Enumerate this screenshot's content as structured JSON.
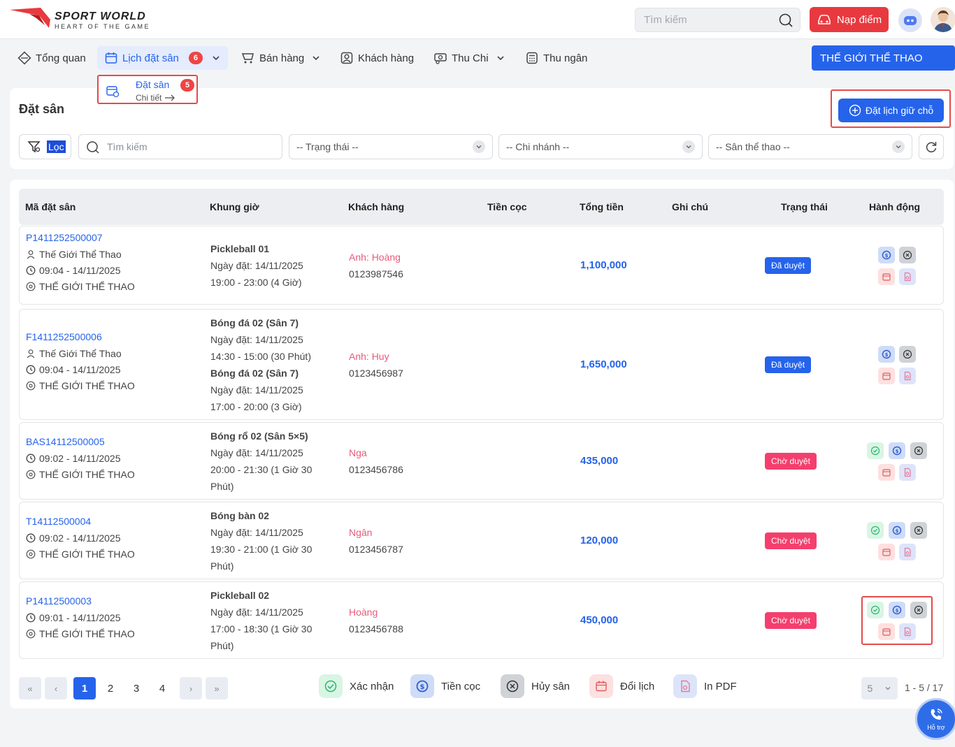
{
  "header": {
    "brand_name": "SPORT WORLD",
    "brand_tagline": "HEART OF THE GAME",
    "search_placeholder": "Tìm kiếm",
    "topup_label": "Nạp điểm",
    "brand_color": "#e8393f"
  },
  "nav": {
    "items": [
      {
        "label": "Tổng quan",
        "icon": "diamond-icon"
      },
      {
        "label": "Lịch đặt sân",
        "icon": "calendar-icon",
        "badge": "6",
        "active": true
      },
      {
        "label": "Bán hàng",
        "icon": "cart-icon"
      },
      {
        "label": "Khách hàng",
        "icon": "user-icon"
      },
      {
        "label": "Thu Chi",
        "icon": "money-icon"
      },
      {
        "label": "Thu ngân",
        "icon": "calculator-icon"
      }
    ],
    "org_label": "THẾ GIỚI THỂ THAO",
    "accent_color": "#2563eb"
  },
  "submenu": {
    "title": "Đặt sân",
    "badge": "5",
    "detail": "Chi tiết"
  },
  "page": {
    "title": "Đặt sân",
    "book_button": "Đặt lịch giữ chỗ",
    "filter_label": "Lọc",
    "search_placeholder": "Tìm kiếm",
    "status_select": "-- Trạng thái --",
    "branch_select": "-- Chi nhánh --",
    "court_select": "-- Sân thể thao --"
  },
  "table": {
    "headers": [
      "Mã đặt sân",
      "Khung giờ",
      "Khách hàng",
      "Tiền cọc",
      "Tổng tiền",
      "Ghi chú",
      "Trạng thái",
      "Hành động"
    ],
    "rows": [
      {
        "code": "P1411252500007",
        "owner": "Thế Giới Thể Thao",
        "created": "09:04 - 14/11/2025",
        "location": "THẾ GIỚI THỂ THAO",
        "slot_lines": [
          {
            "text": "Pickleball 01",
            "bold": true
          },
          {
            "text": "Ngày đặt: 14/11/2025"
          },
          {
            "text": "19:00 - 23:00 (4 Giờ)"
          }
        ],
        "customer_name": "Anh: Hoàng",
        "customer_phone": "0123987546",
        "total": "1,100,000",
        "status": "Đã duyệt"
      },
      {
        "code": "F1411252500006",
        "owner": "Thế Giới Thể Thao",
        "created": "09:04 - 14/11/2025",
        "location": "THẾ GIỚI THỂ THAO",
        "slot_lines": [
          {
            "text": "Bóng đá 02 (Sân 7)",
            "bold": true
          },
          {
            "text": "Ngày đặt: 14/11/2025"
          },
          {
            "text": "14:30 - 15:00 (30 Phút)"
          },
          {
            "text": "Bóng đá 02 (Sân 7)",
            "bold": true
          },
          {
            "text": "Ngày đặt: 14/11/2025"
          },
          {
            "text": "17:00 - 20:00 (3 Giờ)"
          }
        ],
        "customer_name": "Anh: Huy",
        "customer_phone": "0123456987",
        "total": "1,650,000",
        "status": "Đã duyệt"
      },
      {
        "code": "BAS14112500005",
        "created": "09:02 - 14/11/2025",
        "location": "THẾ GIỚI THỂ THAO",
        "slot_lines": [
          {
            "text": "Bóng rổ 02 (Sân 5×5)",
            "bold": true
          },
          {
            "text": "Ngày đặt: 14/11/2025"
          },
          {
            "text": "20:00 - 21:30 (1 Giờ 30"
          },
          {
            "text": "Phút)"
          }
        ],
        "customer_name": "Nga",
        "customer_phone": "0123456786",
        "total": "435,000",
        "status": "Chờ duyệt"
      },
      {
        "code": "T14112500004",
        "created": "09:02 - 14/11/2025",
        "location": "THẾ GIỚI THỂ THAO",
        "slot_lines": [
          {
            "text": "Bóng bàn 02",
            "bold": true
          },
          {
            "text": "Ngày đặt: 14/11/2025"
          },
          {
            "text": "19:30 - 21:00 (1 Giờ 30"
          },
          {
            "text": "Phút)"
          }
        ],
        "customer_name": "Ngân",
        "customer_phone": "0123456787",
        "total": "120,000",
        "status": "Chờ duyệt"
      },
      {
        "code": "P14112500003",
        "created": "09:01 - 14/11/2025",
        "location": "THẾ GIỚI THỂ THAO",
        "slot_lines": [
          {
            "text": "Pickleball 02",
            "bold": true
          },
          {
            "text": "Ngày đặt: 14/11/2025"
          },
          {
            "text": "17:00 - 18:30 (1 Giờ 30"
          },
          {
            "text": "Phút)"
          }
        ],
        "customer_name": "Hoàng",
        "customer_phone": "0123456788",
        "total": "450,000",
        "status": "Chờ duyệt"
      }
    ]
  },
  "pagination": {
    "first": "«",
    "prev": "‹",
    "pages": [
      "1",
      "2",
      "3",
      "4"
    ],
    "next": "›",
    "last": "»",
    "per_page": "5",
    "range": "1 - 5 / 17"
  },
  "legend": {
    "confirm": "Xác nhận",
    "deposit": "Tiền cọc",
    "cancel": "Hủy sân",
    "reschedule": "Đổi lịch",
    "pdf": "In PDF"
  },
  "support": {
    "label": "Hỗ trợ"
  }
}
